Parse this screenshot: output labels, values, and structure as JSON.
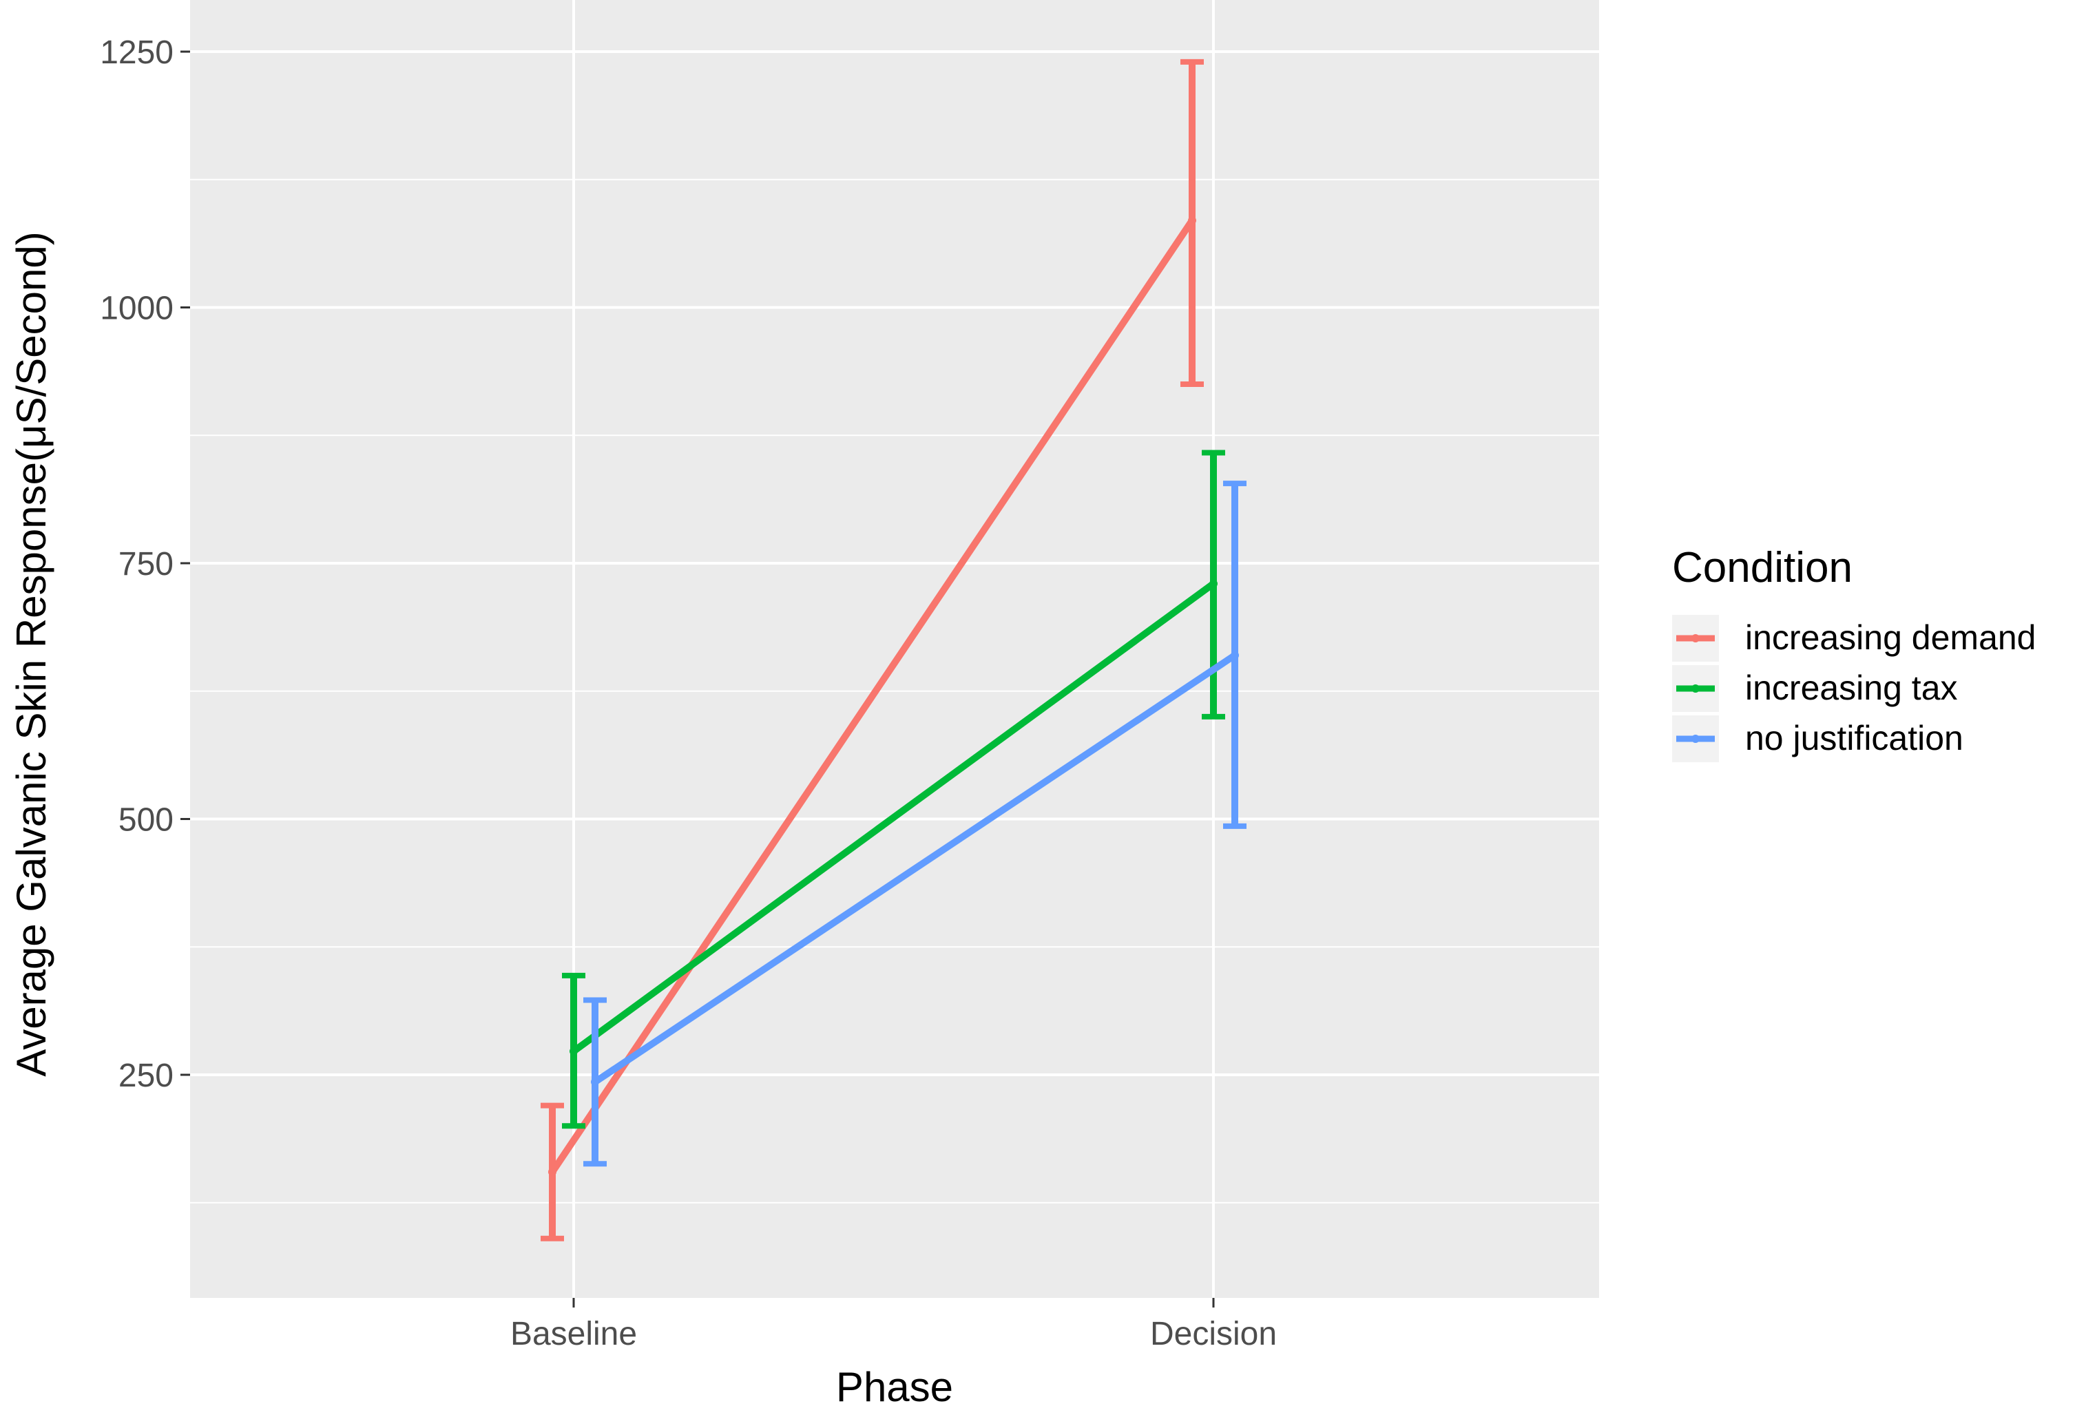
{
  "chart_data": {
    "type": "line",
    "title": "",
    "xlabel": "Phase",
    "ylabel": "Average Galvanic Skin Response(μS/Second)",
    "categories": [
      "Baseline",
      "Decision"
    ],
    "ylim": [
      0,
      1300
    ],
    "yticks": [
      250,
      500,
      750,
      1000,
      1250
    ],
    "grid": true,
    "legend": {
      "title": "Condition",
      "position": "right"
    },
    "series": [
      {
        "name": "increasing demand",
        "color": "#F8766D",
        "values": [
          155,
          1085
        ],
        "error_low": [
          90,
          925
        ],
        "error_high": [
          220,
          1240
        ]
      },
      {
        "name": "increasing tax",
        "color": "#00BA38",
        "values": [
          273,
          730
        ],
        "error_low": [
          200,
          600
        ],
        "error_high": [
          347,
          858
        ]
      },
      {
        "name": "no justification",
        "color": "#619CFF",
        "values": [
          243,
          660
        ],
        "error_low": [
          163,
          493
        ],
        "error_high": [
          323,
          828
        ]
      }
    ]
  }
}
